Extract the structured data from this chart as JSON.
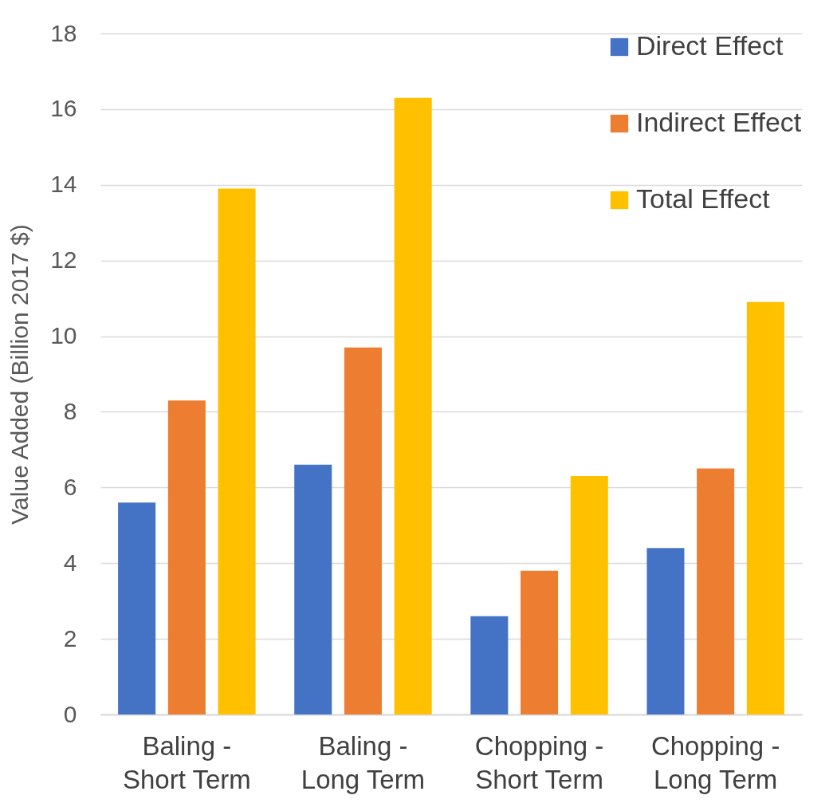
{
  "chart_data": {
    "type": "bar",
    "ylabel": "Value Added (Billion 2017 $)",
    "categories": [
      "Baling - Short Term",
      "Baling - Long Term",
      "Chopping - Short Term",
      "Chopping - Long Term"
    ],
    "series": [
      {
        "name": "Direct Effect",
        "color": "#4472c4",
        "values": [
          5.6,
          6.6,
          2.6,
          4.4
        ]
      },
      {
        "name": "Indirect Effect",
        "color": "#ed7d31",
        "values": [
          8.3,
          9.7,
          3.8,
          6.5
        ]
      },
      {
        "name": "Total Effect",
        "color": "#ffc000",
        "values": [
          13.9,
          16.3,
          6.3,
          10.9
        ]
      }
    ],
    "ylim": [
      0,
      18
    ],
    "yticks": [
      0,
      2,
      4,
      6,
      8,
      10,
      12,
      14,
      16,
      18
    ],
    "grid": "y",
    "legend": "top right"
  }
}
